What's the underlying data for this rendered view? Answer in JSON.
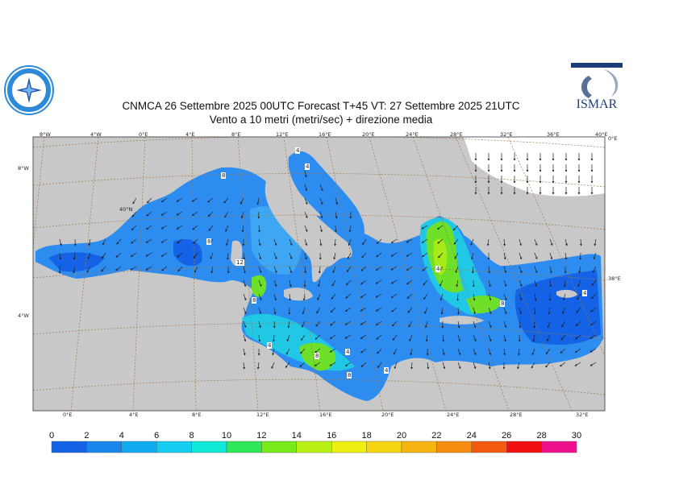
{
  "title": {
    "line1": "CNMCA 26 Settembre 2025 00UTC Forecast T+45 VT: 27 Settembre 2025 21UTC",
    "line2": "Vento a 10 metri (metri/sec) + direzione media"
  },
  "logos": {
    "left": "compass-rose-logo",
    "right_text": "ISMAR"
  },
  "top_lon_labels": [
    "8°W",
    "4°W",
    "0°E",
    "4°E",
    "8°E",
    "12°E",
    "16°E",
    "20°E",
    "24°E",
    "28°E",
    "32°E",
    "36°E",
    "40°E"
  ],
  "bottom_lon_labels": [
    "0°E",
    "4°E",
    "8°E",
    "12°E",
    "16°E",
    "20°E",
    "24°E",
    "28°E",
    "32°E"
  ],
  "left_lat_labels": [
    "8°W",
    "40°N",
    "4°W"
  ],
  "right_lat_labels": [
    "0°E",
    "38°E"
  ],
  "contour_labels": [
    "4",
    "8",
    "12",
    "8",
    "4",
    "8",
    "4",
    "8",
    "4",
    "4",
    "8",
    "4",
    "8",
    "4"
  ],
  "colors": {
    "land": "#c8c8c8",
    "sea_base": "#2d8cf0",
    "grid": "#a07848"
  },
  "colorbar": {
    "ticks": [
      "0",
      "2",
      "4",
      "6",
      "8",
      "10",
      "12",
      "14",
      "16",
      "18",
      "20",
      "22",
      "24",
      "26",
      "28",
      "30"
    ],
    "colors": [
      "#1463e6",
      "#1a86ec",
      "#12aaf0",
      "#14cdf0",
      "#10e8d8",
      "#2ee85a",
      "#78ea1a",
      "#b8f014",
      "#eef012",
      "#f6d612",
      "#f6b410",
      "#f68c10",
      "#f45a10",
      "#f01010",
      "#ee108c"
    ]
  }
}
